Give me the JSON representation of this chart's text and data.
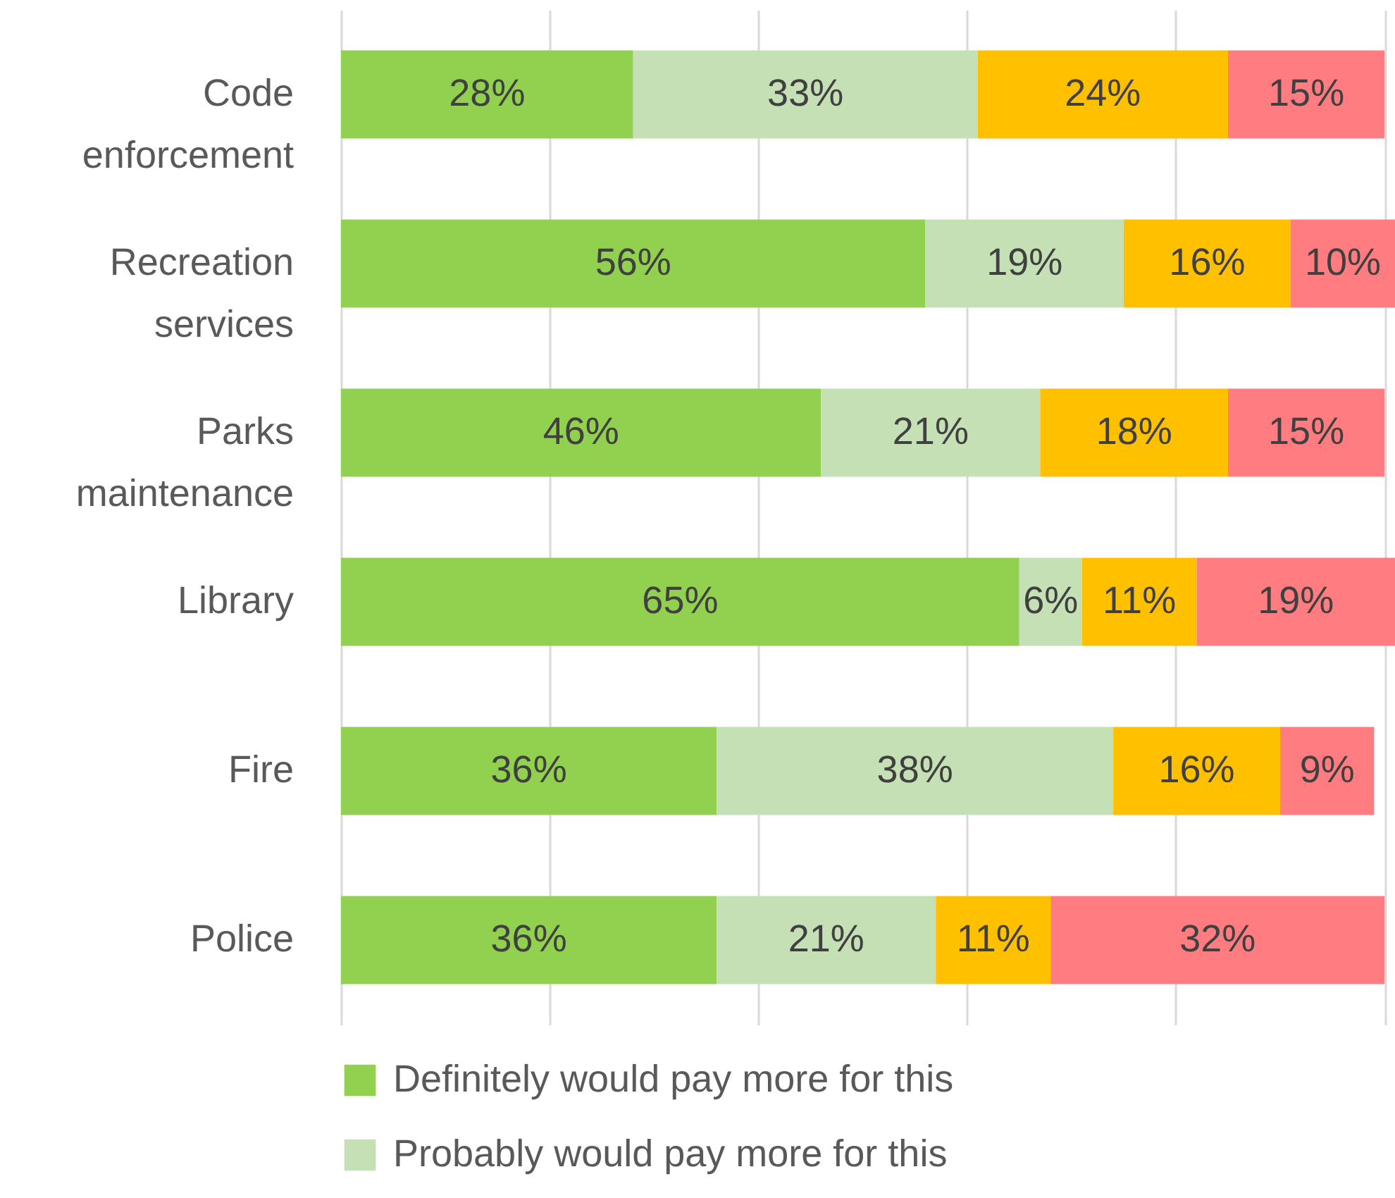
{
  "chart_data": {
    "type": "bar",
    "orientation": "horizontal",
    "stacked": true,
    "categories": [
      "Code enforcement",
      "Recreation services",
      "Parks maintenance",
      "Library",
      "Fire",
      "Police"
    ],
    "series": [
      {
        "name": "Definitely would pay more for this",
        "color": "#92d050",
        "values": [
          28,
          56,
          46,
          65,
          36,
          36
        ],
        "value_labels": [
          "28%",
          "56%",
          "46%",
          "65%",
          "36%",
          "36%"
        ]
      },
      {
        "name": "Probably would pay more for this",
        "color": "#c5e0b4",
        "values": [
          33,
          19,
          21,
          6,
          38,
          21
        ],
        "value_labels": [
          "33%",
          "19%",
          "21%",
          "6%",
          "38%",
          "21%"
        ]
      },
      {
        "color": "#ffc000",
        "values": [
          24,
          16,
          18,
          11,
          16,
          11
        ],
        "value_labels": [
          "24%",
          "16%",
          "18%",
          "11%",
          "16%",
          "11%"
        ]
      },
      {
        "color": "#ff7c80",
        "values": [
          15,
          10,
          15,
          19,
          9,
          32
        ],
        "value_labels": [
          "15%",
          "10%",
          "15%",
          "19%",
          "9%",
          "32%"
        ]
      }
    ],
    "xlim": [
      0,
      101
    ],
    "xticks": [
      {
        "value": 0,
        "label": null
      },
      {
        "value": 20,
        "label": null
      },
      {
        "value": 40,
        "label": null
      },
      {
        "value": 60,
        "label": null
      },
      {
        "value": 80,
        "label": null
      },
      {
        "value": 100,
        "label": null
      }
    ],
    "grid": "x",
    "tick_labels": "y",
    "legend": "bottom"
  }
}
